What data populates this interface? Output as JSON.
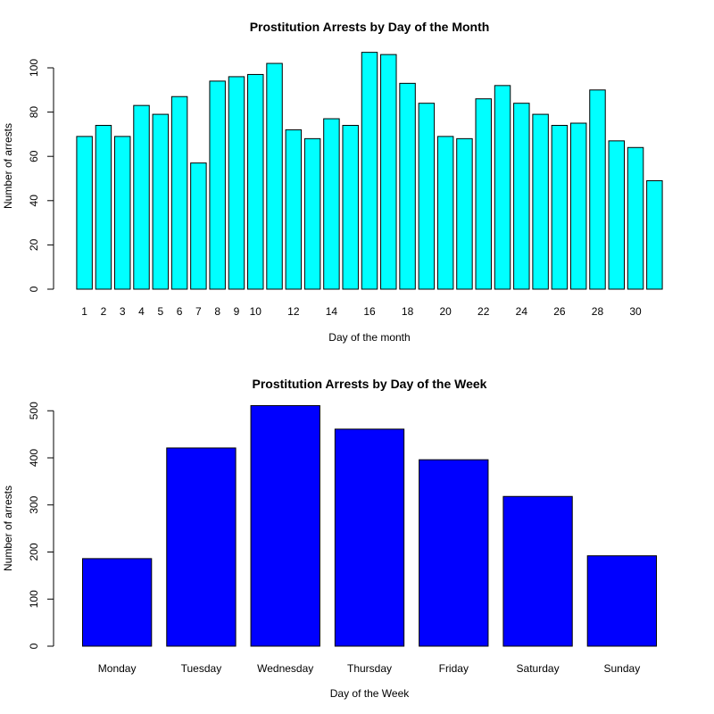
{
  "chart_data": [
    {
      "type": "bar",
      "title": "Prostitution Arrests by Day of the Month",
      "xlabel": "Day of the month",
      "ylabel": "Number of arrests",
      "color": "#00FFFF",
      "ylim": [
        0,
        110
      ],
      "yticks": [
        0,
        20,
        40,
        60,
        80,
        100
      ],
      "categories": [
        "1",
        "2",
        "3",
        "4",
        "5",
        "6",
        "7",
        "8",
        "9",
        "10",
        "11",
        "12",
        "13",
        "14",
        "15",
        "16",
        "17",
        "18",
        "19",
        "20",
        "21",
        "22",
        "23",
        "24",
        "25",
        "26",
        "27",
        "28",
        "29",
        "30",
        "31"
      ],
      "category_labels_shown": [
        "1",
        "2",
        "3",
        "4",
        "5",
        "6",
        "7",
        "8",
        "9",
        "10",
        "",
        "12",
        "",
        "14",
        "",
        "16",
        "",
        "18",
        "",
        "20",
        "",
        "22",
        "",
        "24",
        "",
        "26",
        "",
        "28",
        "",
        "30",
        ""
      ],
      "values": [
        69,
        74,
        69,
        83,
        79,
        87,
        57,
        94,
        96,
        97,
        102,
        72,
        68,
        77,
        74,
        107,
        106,
        93,
        84,
        69,
        68,
        86,
        92,
        84,
        79,
        74,
        75,
        90,
        67,
        64,
        49
      ]
    },
    {
      "type": "bar",
      "title": "Prostitution Arrests by Day of the Week",
      "xlabel": "Day of the Week",
      "ylabel": "Number of arrests",
      "color": "#0000FF",
      "ylim": [
        0,
        520
      ],
      "yticks": [
        0,
        100,
        200,
        300,
        400,
        500
      ],
      "categories": [
        "Monday",
        "Tuesday",
        "Wednesday",
        "Thursday",
        "Friday",
        "Saturday",
        "Sunday"
      ],
      "category_labels_shown": [
        "Monday",
        "Tuesday",
        "Wednesday",
        "Thursday",
        "Friday",
        "Saturday",
        "Sunday"
      ],
      "values": [
        186,
        421,
        511,
        461,
        396,
        318,
        192
      ]
    }
  ]
}
